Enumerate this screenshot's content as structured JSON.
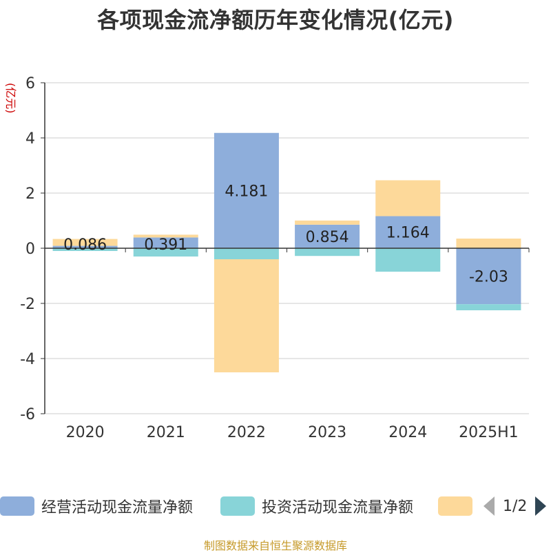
{
  "title": "各项现金流净额历年变化情况(亿元)",
  "source": "制图数据来自恒生聚源数据库",
  "legend_pager": "1/2",
  "chart_data": {
    "type": "bar",
    "stacked": true,
    "categories": [
      "2020",
      "2021",
      "2022",
      "2023",
      "2024",
      "2025H1"
    ],
    "ylabel": "(亿元)",
    "ylim": [
      -6,
      6
    ],
    "yticks": [
      6,
      4,
      2,
      0,
      -2,
      -4,
      -6
    ],
    "grid": true,
    "legend_position": "bottom",
    "series": [
      {
        "name": "经营活动现金流量净额",
        "color": "#8eaedb",
        "values": [
          0.086,
          0.391,
          4.181,
          0.854,
          1.164,
          -2.03
        ],
        "labels": [
          "0.086",
          "0.391",
          "4.181",
          "0.854",
          "1.164",
          "-2.03"
        ]
      },
      {
        "name": "投资活动现金流量净额",
        "color": "#88d4d8",
        "values": [
          -0.1,
          -0.3,
          -0.4,
          -0.28,
          -0.85,
          -0.22
        ]
      },
      {
        "name": "",
        "color": "#fdd99a",
        "values": [
          0.25,
          0.1,
          -4.1,
          0.15,
          1.3,
          0.35
        ]
      }
    ]
  }
}
